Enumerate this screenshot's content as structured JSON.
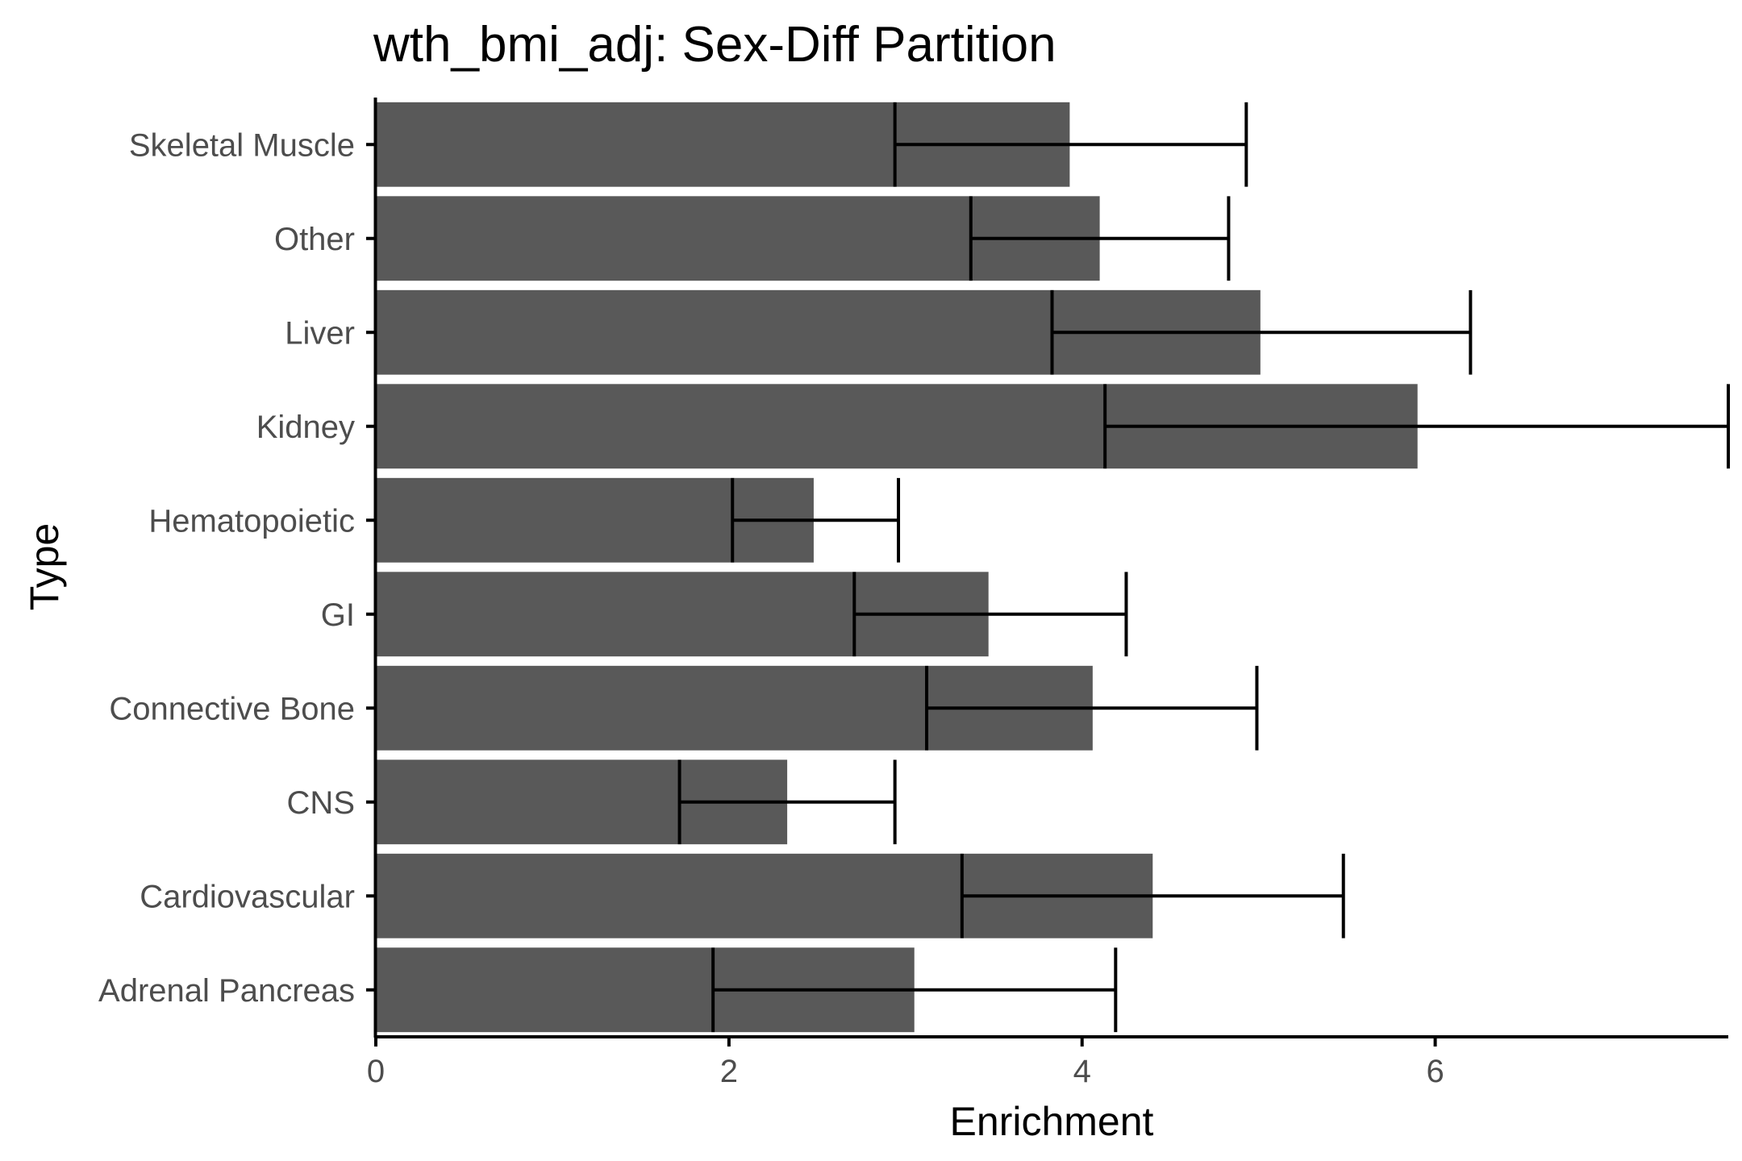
{
  "chart_data": {
    "type": "bar",
    "orientation": "horizontal",
    "title": "wth_bmi_adj: Sex-Diff Partition",
    "xlabel": "Enrichment",
    "ylabel": "Type",
    "xlim": [
      0,
      7.66
    ],
    "xticks": [
      0,
      2,
      4,
      6
    ],
    "xtick_labels": [
      "0",
      "2",
      "4",
      "6"
    ],
    "grid": false,
    "legend": "none",
    "bar_color": "#595959",
    "errorbar_color": "#000000",
    "categories": [
      "Adrenal Pancreas",
      "Cardiovascular",
      "CNS",
      "Connective Bone",
      "GI",
      "Hematopoietic",
      "Kidney",
      "Liver",
      "Other",
      "Skeletal Muscle"
    ],
    "values": [
      3.05,
      4.4,
      2.33,
      4.06,
      3.47,
      2.48,
      5.9,
      5.01,
      4.1,
      3.93
    ],
    "error_lower": [
      1.91,
      3.32,
      1.72,
      3.12,
      2.71,
      2.02,
      4.13,
      3.83,
      3.37,
      2.94
    ],
    "error_upper": [
      4.19,
      5.48,
      2.94,
      4.99,
      4.25,
      2.96,
      7.66,
      6.2,
      4.83,
      4.93
    ]
  }
}
